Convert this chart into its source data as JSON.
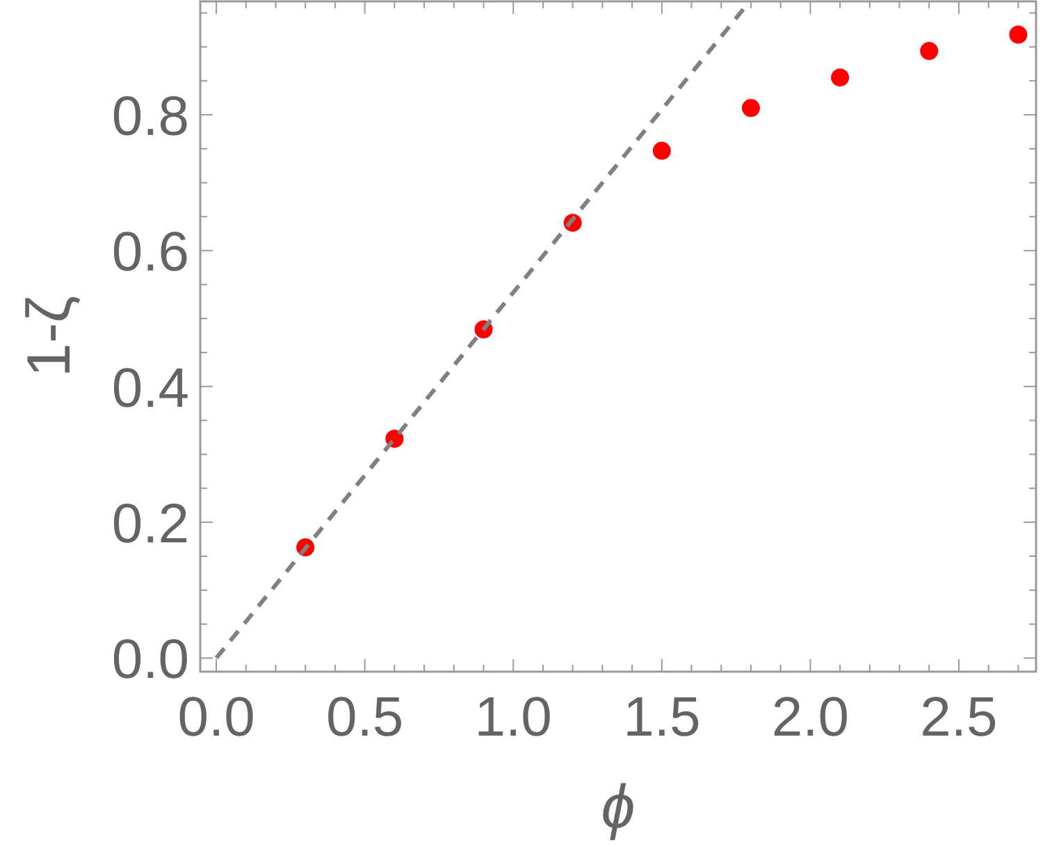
{
  "chart_data": {
    "type": "scatter",
    "xlabel": "ϕ",
    "ylabel": "1-ζ",
    "series": [
      {
        "color": "#ff0000",
        "marker": "circle",
        "x": [
          0.3,
          0.6,
          0.9,
          1.2,
          1.5,
          1.8,
          2.1,
          2.4,
          2.7
        ],
        "values": [
          0.163,
          0.323,
          0.484,
          0.641,
          0.747,
          0.81,
          0.855,
          0.894,
          0.918
        ]
      },
      {
        "type": "line",
        "color": "#808080",
        "line_style": "dashed",
        "marker": "none",
        "x": [
          0,
          1.796
        ],
        "values": [
          0,
          0.967
        ]
      }
    ],
    "xlim": [
      -0.054,
      2.76
    ],
    "ylim": [
      -0.02,
      0.967
    ],
    "xticks": [
      {
        "value": 0,
        "label": "0.0"
      },
      {
        "value": 0.1,
        "label": null
      },
      {
        "value": 0.2,
        "label": null
      },
      {
        "value": 0.3,
        "label": null
      },
      {
        "value": 0.4,
        "label": null
      },
      {
        "value": 0.5,
        "label": "0.5"
      },
      {
        "value": 0.6,
        "label": null
      },
      {
        "value": 0.7,
        "label": null
      },
      {
        "value": 0.8,
        "label": null
      },
      {
        "value": 0.9,
        "label": null
      },
      {
        "value": 1,
        "label": "1.0"
      },
      {
        "value": 1.1,
        "label": null
      },
      {
        "value": 1.2,
        "label": null
      },
      {
        "value": 1.3,
        "label": null
      },
      {
        "value": 1.4,
        "label": null
      },
      {
        "value": 1.5,
        "label": "1.5"
      },
      {
        "value": 1.6,
        "label": null
      },
      {
        "value": 1.7,
        "label": null
      },
      {
        "value": 1.8,
        "label": null
      },
      {
        "value": 1.9,
        "label": null
      },
      {
        "value": 2,
        "label": "2.0"
      },
      {
        "value": 2.1,
        "label": null
      },
      {
        "value": 2.2,
        "label": null
      },
      {
        "value": 2.3,
        "label": null
      },
      {
        "value": 2.4,
        "label": null
      },
      {
        "value": 2.5,
        "label": "2.5"
      },
      {
        "value": 2.6,
        "label": null
      },
      {
        "value": 2.7,
        "label": null
      }
    ],
    "yticks": [
      {
        "value": 0,
        "label": "0.0"
      },
      {
        "value": 0.05,
        "label": null
      },
      {
        "value": 0.1,
        "label": null
      },
      {
        "value": 0.15,
        "label": null
      },
      {
        "value": 0.2,
        "label": "0.2"
      },
      {
        "value": 0.25,
        "label": null
      },
      {
        "value": 0.3,
        "label": null
      },
      {
        "value": 0.35,
        "label": null
      },
      {
        "value": 0.4,
        "label": "0.4"
      },
      {
        "value": 0.45,
        "label": null
      },
      {
        "value": 0.5,
        "label": null
      },
      {
        "value": 0.55,
        "label": null
      },
      {
        "value": 0.6,
        "label": "0.6"
      },
      {
        "value": 0.65,
        "label": null
      },
      {
        "value": 0.7,
        "label": null
      },
      {
        "value": 0.75,
        "label": null
      },
      {
        "value": 0.8,
        "label": "0.8"
      },
      {
        "value": 0.85,
        "label": null
      },
      {
        "value": 0.9,
        "label": null
      },
      {
        "value": 0.95,
        "label": null
      }
    ],
    "grid": false
  }
}
